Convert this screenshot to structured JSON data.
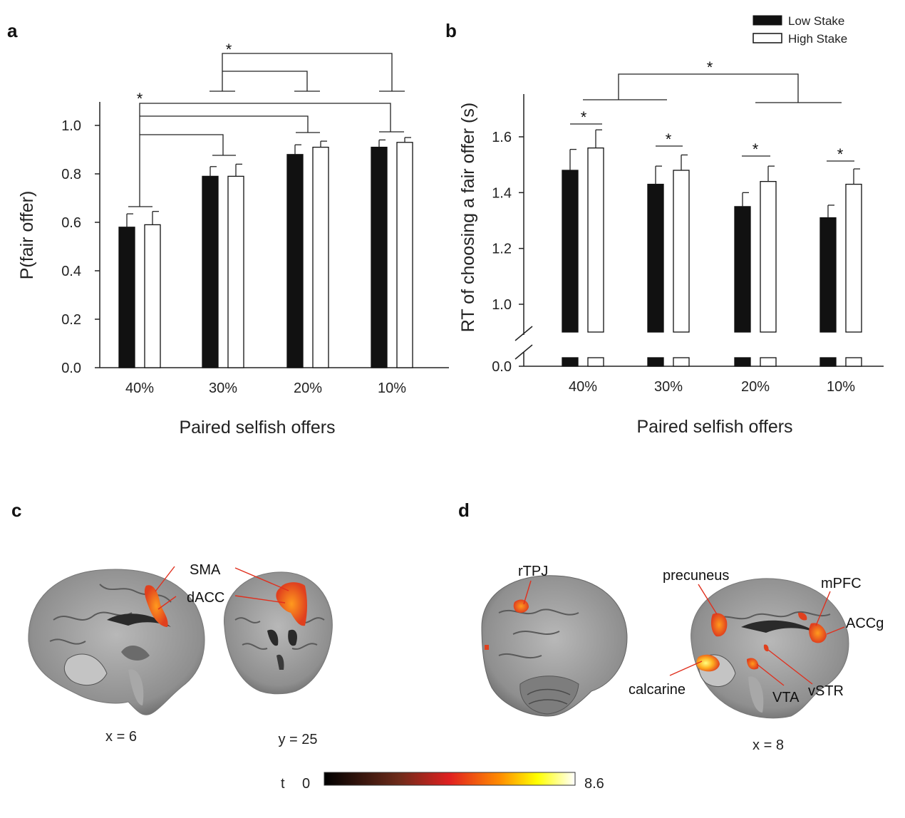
{
  "panels": {
    "a": "a",
    "b": "b",
    "c": "c",
    "d": "d"
  },
  "legend": {
    "low": "Low Stake",
    "high": "High Stake"
  },
  "sig_symbol": "*",
  "colors": {
    "low": "#111111",
    "high": "#ffffff",
    "bar_edge": "#111111"
  },
  "chart_data": [
    {
      "id": "a",
      "type": "bar",
      "categories": [
        "40%",
        "30%",
        "20%",
        "10%"
      ],
      "series": [
        {
          "name": "Low Stake",
          "values": [
            0.58,
            0.79,
            0.88,
            0.91
          ],
          "errors": [
            0.055,
            0.04,
            0.04,
            0.03
          ]
        },
        {
          "name": "High Stake",
          "values": [
            0.59,
            0.79,
            0.91,
            0.93
          ],
          "errors": [
            0.055,
            0.05,
            0.025,
            0.02
          ]
        }
      ],
      "ylabel": "P(fair offer)",
      "xlabel": "Paired selfish offers",
      "ylim": [
        0,
        1.1
      ],
      "yticks": [
        "0.0",
        "0.2",
        "0.4",
        "0.6",
        "0.8",
        "1.0"
      ],
      "grid": false,
      "legend": "top-right"
    },
    {
      "id": "b",
      "type": "bar",
      "categories": [
        "40%",
        "30%",
        "20%",
        "10%"
      ],
      "series": [
        {
          "name": "Low Stake",
          "values": [
            1.48,
            1.43,
            1.35,
            1.31
          ],
          "errors": [
            0.075,
            0.065,
            0.05,
            0.045
          ]
        },
        {
          "name": "High Stake",
          "values": [
            1.56,
            1.48,
            1.44,
            1.43
          ],
          "errors": [
            0.065,
            0.055,
            0.055,
            0.055
          ]
        }
      ],
      "ylabel": "RT of choosing a fair offer (s)",
      "xlabel": "Paired selfish offers",
      "ylim": [
        0.9,
        1.75
      ],
      "axis_break": true,
      "yticks": [
        "0.0",
        "1.0",
        "1.2",
        "1.4",
        "1.6"
      ],
      "grid": false
    }
  ],
  "panel_c": {
    "labels": {
      "sma": "SMA",
      "dacc": "dACC"
    },
    "coords": {
      "sagittal": "x = 6",
      "coronal": "y = 25"
    }
  },
  "panel_d": {
    "labels": {
      "rtpj": "rTPJ",
      "precuneus": "precuneus",
      "mpfc": "mPFC",
      "accg": "ACCg",
      "calcarine": "calcarine",
      "vta": "VTA",
      "vstr": "vSTR"
    },
    "coords": {
      "sagittal": "x = 8"
    }
  },
  "colorbar": {
    "label": "t",
    "min": "0",
    "max": "8.6",
    "colors": [
      "#000000",
      "#6e2b1a",
      "#e02020",
      "#ff8c00",
      "#ffff00",
      "#ffffff"
    ]
  }
}
